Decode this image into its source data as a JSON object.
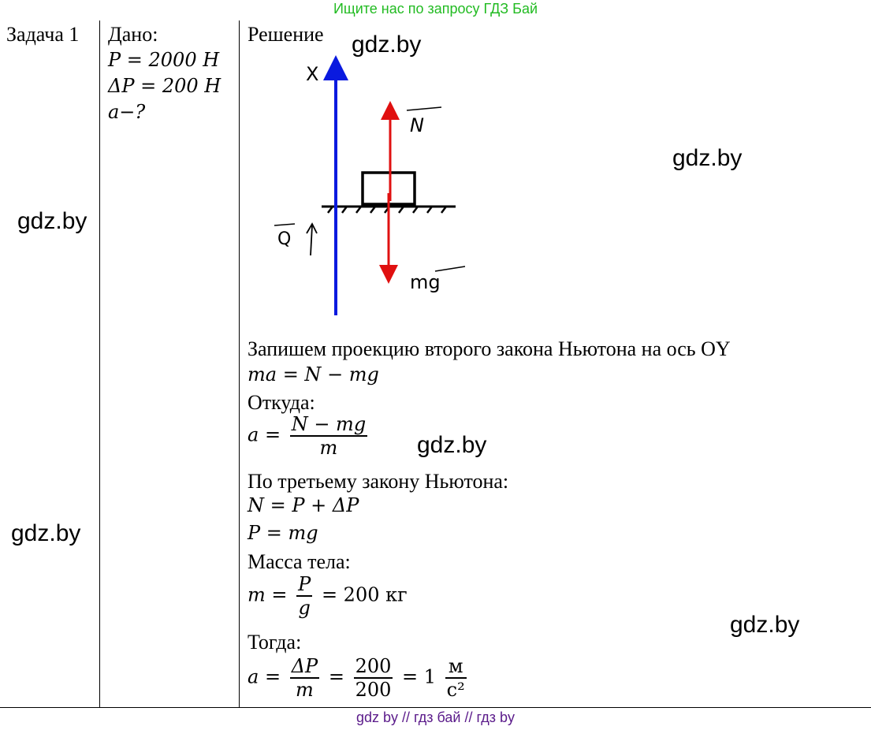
{
  "banner": "Ищите нас по запросу ГДЗ Бай",
  "task_label": "Задача 1",
  "given": {
    "title": "Дано:",
    "line1": "P = 2000 Н",
    "line2": "ΔP = 200 Н",
    "line3": "a−?"
  },
  "solution": {
    "title": "Решение",
    "diagram_labels": {
      "x": "X",
      "n": "N",
      "q": "Q",
      "mg": "mg"
    },
    "text1": "Запишем проекцию второго закона Ньютона на ось OY",
    "eq1": "ma = N − mg",
    "text2": "Откуда:",
    "eq2_lhs": "a =",
    "eq2_num": "N − mg",
    "eq2_den": "m",
    "text3": "По третьему закону Ньютона:",
    "eq3": "N = P + ΔP",
    "eq4": "P = mg",
    "text4": "Масса тела:",
    "eq5_lhs": "m =",
    "eq5_num": "P",
    "eq5_den": "g",
    "eq5_rhs": "= 200 кг",
    "text5": "Тогда:",
    "eq6_lhs": "a =",
    "eq6_num1": "ΔP",
    "eq6_den1": "m",
    "eq6_eq": "=",
    "eq6_num2": "200",
    "eq6_den2": "200",
    "eq6_rhs": "= 1",
    "eq6_unit_num": "м",
    "eq6_unit_den": "с²"
  },
  "watermarks": [
    "gdz.by",
    "gdz.by",
    "gdz.by",
    "gdz.by",
    "gdz.by",
    "gdz.by"
  ],
  "footer": "gdz by  //  гдз бай  //  гдз by",
  "colors": {
    "banner": "#22bb22",
    "footer": "#5a1a8a",
    "axis_blue": "#0a1adf",
    "force_red": "#e01010"
  }
}
